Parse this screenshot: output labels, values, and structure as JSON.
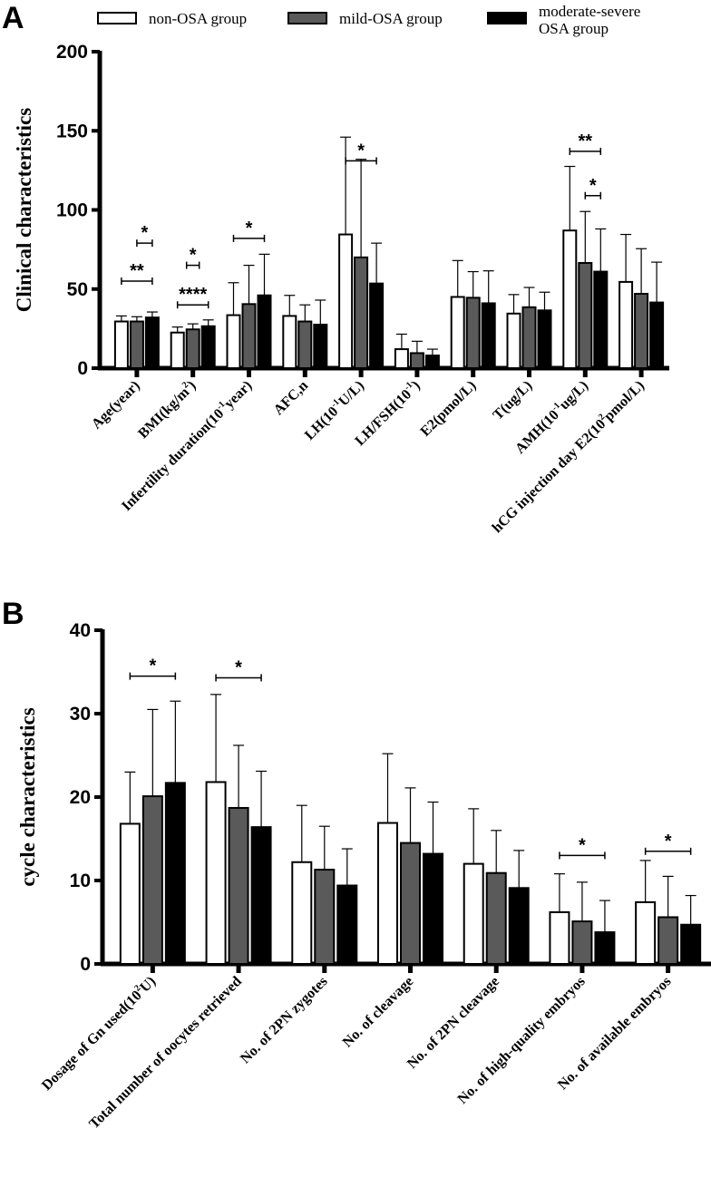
{
  "legend": {
    "series": [
      {
        "name": "non-OSA group",
        "lines": [
          "non-OSA group"
        ],
        "fill": "#ffffff"
      },
      {
        "name": "mild-OSA group",
        "lines": [
          "mild-OSA group"
        ],
        "fill": "#5a5a5a"
      },
      {
        "name": "moderate-severe OSA group",
        "lines": [
          "moderate-severe",
          "OSA group"
        ],
        "fill": "#000000"
      }
    ]
  },
  "chart_data": [
    {
      "panel": "A",
      "type": "bar",
      "ylabel": "Clinical characteristics",
      "ylim": [
        0,
        200
      ],
      "yticks": [
        0,
        50,
        100,
        150,
        200
      ],
      "categories": [
        {
          "label": "Age(year)",
          "parts": [
            {
              "t": "Age(year)"
            }
          ]
        },
        {
          "label": "BMI(kg/m2)",
          "parts": [
            {
              "t": "BMI(kg/m"
            },
            {
              "t": "2",
              "sup": true
            },
            {
              "t": ")"
            }
          ]
        },
        {
          "label": "Infertility duration(10-1year)",
          "parts": [
            {
              "t": "Infertility duration(10"
            },
            {
              "t": "-1",
              "sup": true
            },
            {
              "t": "year)"
            }
          ]
        },
        {
          "label": "AFC,n",
          "parts": [
            {
              "t": "AFC,n"
            }
          ]
        },
        {
          "label": "LH(10-1U/L)",
          "parts": [
            {
              "t": "LH(10"
            },
            {
              "t": "-1",
              "sup": true
            },
            {
              "t": "U/L)"
            }
          ]
        },
        {
          "label": "LH/FSH(10-1)",
          "parts": [
            {
              "t": "LH/FSH(10"
            },
            {
              "t": "-1",
              "sup": true
            },
            {
              "t": ")"
            }
          ]
        },
        {
          "label": "E2(pmol/L)",
          "parts": [
            {
              "t": "E2(pmol/L)"
            }
          ]
        },
        {
          "label": "T(ug/L)",
          "parts": [
            {
              "t": "T(ug/L)"
            }
          ]
        },
        {
          "label": "AMH(10-1ug/L)",
          "parts": [
            {
              "t": "AMH(10"
            },
            {
              "t": "-1",
              "sup": true
            },
            {
              "t": "ug/L)"
            }
          ]
        },
        {
          "label": "hCG injection day E2(102pmol/L)",
          "parts": [
            {
              "t": "hCG injection day E2(10"
            },
            {
              "t": "2",
              "sup": true
            },
            {
              "t": "pmol/L)"
            }
          ]
        }
      ],
      "series": [
        {
          "name": "non-OSA group",
          "values": [
            29.5,
            22.5,
            33.5,
            33,
            84.5,
            12,
            45,
            34.5,
            87,
            54.5
          ],
          "errors": [
            3.5,
            3.5,
            20.5,
            13,
            61.5,
            9.5,
            23,
            12,
            40.5,
            30
          ]
        },
        {
          "name": "mild-OSA group",
          "values": [
            29.5,
            24.5,
            40.5,
            29.5,
            70,
            9.5,
            44.5,
            38.5,
            66.5,
            47
          ],
          "errors": [
            3,
            3.5,
            24.5,
            10.5,
            62,
            7.5,
            16.5,
            12.5,
            32.5,
            28.5
          ]
        },
        {
          "name": "moderate-severe OSA group",
          "values": [
            32,
            26.5,
            46,
            27.5,
            53.5,
            8,
            41,
            36.5,
            61,
            41.5
          ],
          "errors": [
            3.5,
            4,
            26,
            15.5,
            25.5,
            4,
            20.5,
            11.5,
            27,
            25.5
          ]
        }
      ],
      "significance": [
        {
          "category": 0,
          "from": 0,
          "to": 2,
          "y": 55,
          "label": "**"
        },
        {
          "category": 0,
          "from": 1,
          "to": 2,
          "y": 79,
          "label": "*"
        },
        {
          "category": 1,
          "from": 0,
          "to": 2,
          "y": 40,
          "label": "****"
        },
        {
          "category": 1,
          "from": 1,
          "to": 1,
          "y": 65,
          "label": "*"
        },
        {
          "category": 2,
          "from": 0,
          "to": 2,
          "y": 82,
          "label": "*"
        },
        {
          "category": 4,
          "from": 0,
          "to": 2,
          "y": 131,
          "label": "*"
        },
        {
          "category": 8,
          "from": 0,
          "to": 2,
          "y": 137,
          "label": "**"
        },
        {
          "category": 8,
          "from": 1,
          "to": 2,
          "y": 109,
          "label": "*"
        }
      ]
    },
    {
      "panel": "B",
      "type": "bar",
      "ylabel": "cycle characteristics",
      "ylim": [
        0,
        40
      ],
      "yticks": [
        0,
        10,
        20,
        30,
        40
      ],
      "categories": [
        {
          "label": "Dosage of Gn used(102U)",
          "parts": [
            {
              "t": "Dosage of Gn used(10"
            },
            {
              "t": "2",
              "sup": true
            },
            {
              "t": "U)"
            }
          ]
        },
        {
          "label": "Total number of oocytes retrieved",
          "parts": [
            {
              "t": "Total number of oocytes retrieved"
            }
          ]
        },
        {
          "label": "No. of 2PN zygotes",
          "parts": [
            {
              "t": "No. of 2PN zygotes"
            }
          ]
        },
        {
          "label": "No. of cleavage",
          "parts": [
            {
              "t": "No. of  cleavage"
            }
          ]
        },
        {
          "label": "No. of 2PN cleavage",
          "parts": [
            {
              "t": "No. of  2PN cleavage"
            }
          ]
        },
        {
          "label": "No. of high-quality embryos",
          "parts": [
            {
              "t": "No. of high-quality embryos"
            }
          ]
        },
        {
          "label": "No. of available embryos",
          "parts": [
            {
              "t": "No. of available embryos"
            }
          ]
        }
      ],
      "series": [
        {
          "name": "non-OSA group",
          "values": [
            16.8,
            21.8,
            12.2,
            16.9,
            12,
            6.2,
            7.4
          ],
          "errors": [
            6.2,
            10.5,
            6.8,
            8.3,
            6.6,
            4.6,
            5
          ]
        },
        {
          "name": "mild-OSA group",
          "values": [
            20.1,
            18.7,
            11.3,
            14.5,
            10.9,
            5.1,
            5.6
          ],
          "errors": [
            10.4,
            7.5,
            5.2,
            6.6,
            5.1,
            4.7,
            4.9
          ]
        },
        {
          "name": "moderate-severe OSA group",
          "values": [
            21.7,
            16.4,
            9.4,
            13.2,
            9.1,
            3.8,
            4.7
          ],
          "errors": [
            9.8,
            6.7,
            4.4,
            6.2,
            4.5,
            3.8,
            3.5
          ]
        }
      ],
      "significance": [
        {
          "category": 0,
          "from": 0,
          "to": 2,
          "y": 34.5,
          "label": "*"
        },
        {
          "category": 1,
          "from": 0,
          "to": 2,
          "y": 34.3,
          "label": "*"
        },
        {
          "category": 5,
          "from": 0,
          "to": 2,
          "y": 13,
          "label": "*"
        },
        {
          "category": 6,
          "from": 0,
          "to": 2,
          "y": 13.5,
          "label": "*"
        }
      ]
    }
  ]
}
